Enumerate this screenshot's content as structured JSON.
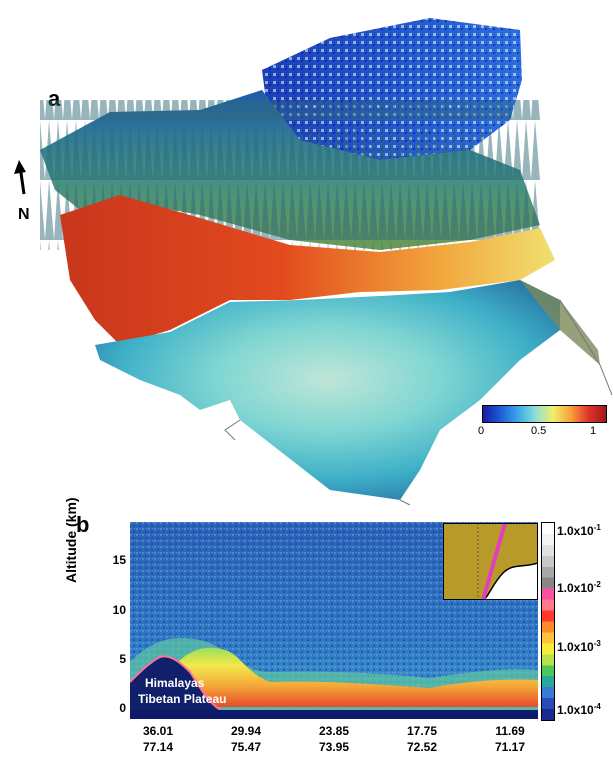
{
  "panel_a": {
    "label": "a",
    "north_label": "N",
    "colorbar": {
      "ticks": [
        "0",
        "0.5",
        "1"
      ],
      "colors": [
        "#1a1aa6",
        "#1f5bd6",
        "#3aa8e8",
        "#8ee0d8",
        "#f2ee6a",
        "#f6a23a",
        "#e0322a",
        "#a01a1a"
      ]
    }
  },
  "chart_data": {
    "type": "heatmap",
    "title": "",
    "panel_label": "b",
    "ylabel": "Altitude (km)",
    "ylim": [
      -1,
      19
    ],
    "yticks": [
      "0",
      "5",
      "10",
      "15"
    ],
    "x_ticks": [
      {
        "lat": "36.01",
        "lon": "77.14"
      },
      {
        "lat": "29.94",
        "lon": "75.47"
      },
      {
        "lat": "23.85",
        "lon": "73.95"
      },
      {
        "lat": "17.75",
        "lon": "72.52"
      },
      {
        "lat": "11.69",
        "lon": "71.17"
      }
    ],
    "terrain_labels": [
      "Himalayas",
      "Tibetan Plateau"
    ],
    "colorbar_ticks": [
      "1.0x10-1",
      "1.0x10-2",
      "1.0x10-3",
      "1.0x10-4"
    ],
    "colorbar_scale": "log"
  }
}
